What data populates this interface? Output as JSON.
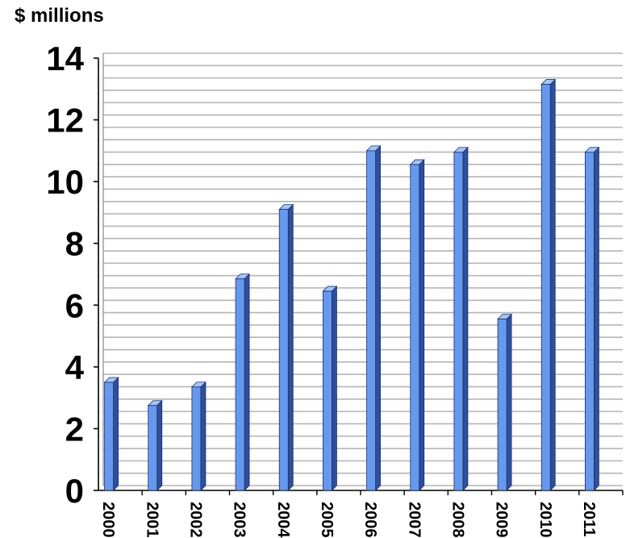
{
  "chart_data": {
    "type": "bar",
    "ylabel": "$ millions",
    "categories": [
      "2000",
      "2001",
      "2002",
      "2003",
      "2004",
      "2005",
      "2006",
      "2007",
      "2008",
      "2009",
      "2010",
      "2011"
    ],
    "values": [
      3.5,
      2.75,
      3.35,
      6.85,
      9.1,
      6.45,
      11.0,
      10.55,
      10.95,
      5.55,
      13.15,
      10.95
    ],
    "ylim": [
      0,
      14
    ],
    "yticks": [
      0,
      2,
      4,
      6,
      8,
      10,
      12,
      14
    ],
    "minor_grid_step": 0.4,
    "grid": true,
    "legend": "none",
    "colors": {
      "bar_front": "#6699ee",
      "bar_top": "#a8c4f4",
      "bar_side": "#2f4f9c",
      "grid": "#b5b5b5",
      "axis": "#000000"
    }
  }
}
